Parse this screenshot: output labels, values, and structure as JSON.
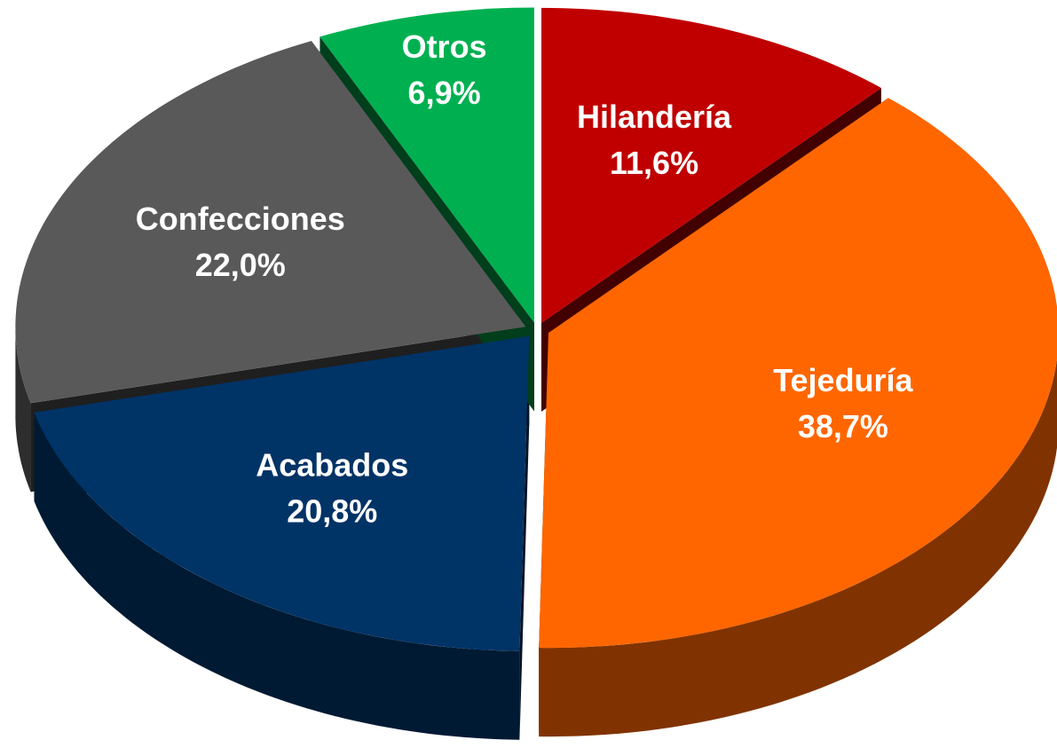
{
  "chart_data": {
    "type": "pie",
    "categories": [
      "Hilandería",
      "Tejeduría",
      "Acabados",
      "Confecciones",
      "Otros"
    ],
    "values": [
      11.6,
      38.7,
      20.8,
      22.0,
      6.9
    ],
    "value_labels": [
      "11,6%",
      "38,7%",
      "20,8%",
      "22,0%",
      "6,9%"
    ],
    "colors": [
      "#c00000",
      "#ff6600",
      "#003366",
      "#595959",
      "#00b050"
    ]
  }
}
